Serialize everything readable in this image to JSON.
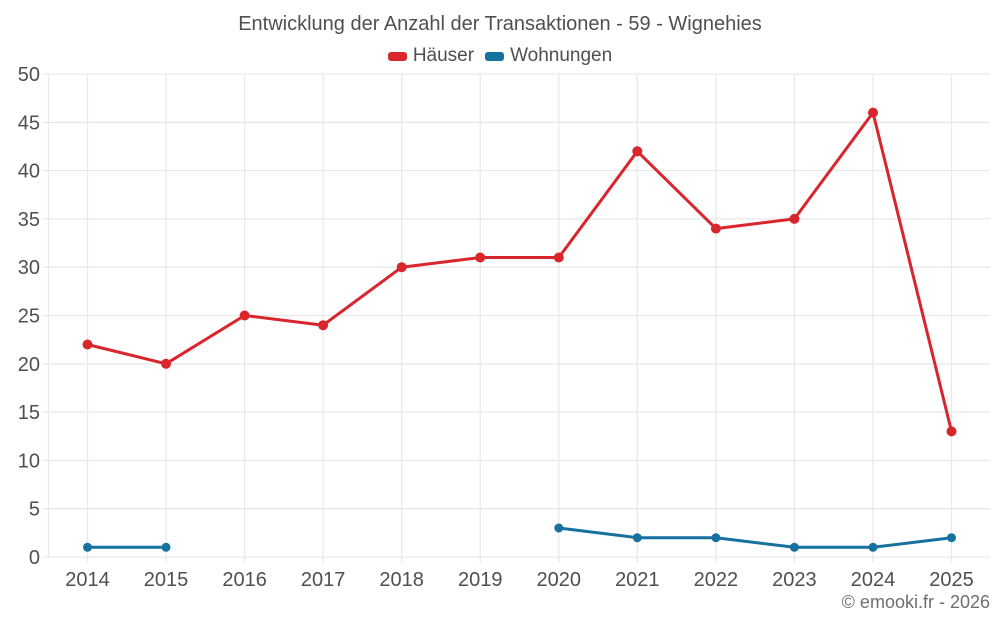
{
  "page": {
    "footer": "© emooki.fr - 2026",
    "background": "#ffffff"
  },
  "chart_data": {
    "type": "line",
    "title": "Entwicklung der Anzahl der Transaktionen - 59 - Wignehies",
    "categories": [
      "2014",
      "2015",
      "2016",
      "2017",
      "2018",
      "2019",
      "2020",
      "2021",
      "2022",
      "2023",
      "2024",
      "2025"
    ],
    "series": [
      {
        "name": "Häuser",
        "color": "#d9252c",
        "values": [
          22,
          20,
          25,
          24,
          30,
          31,
          31,
          42,
          34,
          35,
          46,
          13
        ]
      },
      {
        "name": "Wohnungen",
        "color": "#17719f",
        "values": [
          1,
          1,
          null,
          null,
          null,
          null,
          3,
          2,
          2,
          1,
          1,
          2
        ]
      }
    ],
    "ylim": [
      0,
      50
    ],
    "ytick_step": 5,
    "y_tick_labels": [
      "0",
      "5",
      "10",
      "15",
      "20",
      "25",
      "30",
      "35",
      "40",
      "45",
      "50"
    ],
    "grid": true,
    "legend_position": "top",
    "axis_text_color": "#4f4f4f",
    "grid_color": "#e9e9e9",
    "footer_text_color": "#6f6f6f"
  }
}
